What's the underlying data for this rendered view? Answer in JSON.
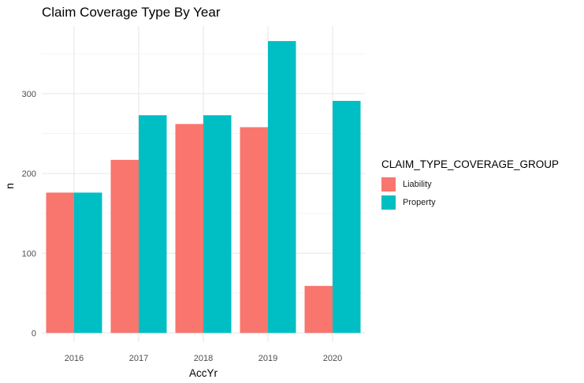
{
  "chart_data": {
    "type": "bar",
    "title": "Claim Coverage Type By Year",
    "xlabel": "AccYr",
    "ylabel": "n",
    "categories": [
      "2016",
      "2017",
      "2018",
      "2019",
      "2020"
    ],
    "series": [
      {
        "name": "Liability",
        "values": [
          176,
          217,
          262,
          258,
          59
        ],
        "color": "#F8766D"
      },
      {
        "name": "Property",
        "values": [
          176,
          273,
          273,
          366,
          291
        ],
        "color": "#00BFC4"
      }
    ],
    "ylim": [
      0,
      385
    ],
    "yticks": [
      0,
      100,
      200,
      300
    ],
    "grid": true,
    "legend_title": "CLAIM_TYPE_COVERAGE_GROUP",
    "legend_position": "right"
  }
}
